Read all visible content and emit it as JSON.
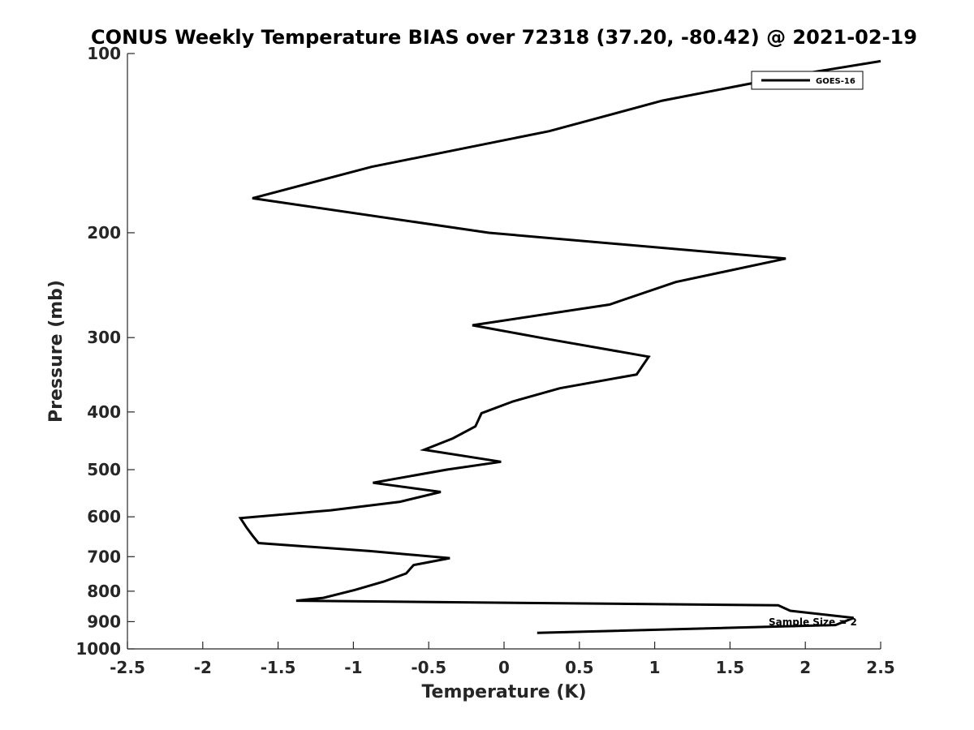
{
  "chart_data": {
    "type": "line",
    "title": "CONUS Weekly Temperature BIAS over 72318 (37.20, -80.42) @ 2021-02-19",
    "xlabel": "Temperature (K)",
    "ylabel": "Pressure (mb)",
    "xlim": [
      -2.5,
      2.5
    ],
    "ylim": [
      100,
      1000
    ],
    "y_scale": "log",
    "y_reversed": true,
    "grid": false,
    "legend_position": "top-right",
    "x_ticks": [
      "-2.5",
      "-2",
      "-1.5",
      "-1",
      "-0.5",
      "0",
      "0.5",
      "1",
      "1.5",
      "2",
      "2.5"
    ],
    "x_tick_values": [
      -2.5,
      -2,
      -1.5,
      -1,
      -0.5,
      0,
      0.5,
      1,
      1.5,
      2,
      2.5
    ],
    "y_ticks": [
      "100",
      "200",
      "300",
      "400",
      "500",
      "600",
      "700",
      "800",
      "900",
      "1000"
    ],
    "y_tick_values": [
      100,
      200,
      300,
      400,
      500,
      600,
      700,
      800,
      900,
      1000
    ],
    "annotation": "Sample Size = 2",
    "series": [
      {
        "name": "GOES-16",
        "color": "#000000",
        "x": [
          2.5,
          1.9,
          1.05,
          0.3,
          -0.88,
          -1.67,
          -0.1,
          1.87,
          1.14,
          0.7,
          -0.21,
          0.27,
          0.96,
          0.88,
          0.37,
          0.06,
          -0.15,
          -0.19,
          -0.34,
          -0.53,
          -0.02,
          -0.38,
          -0.87,
          -0.42,
          -0.69,
          -1.15,
          -1.75,
          -1.71,
          -1.67,
          -1.63,
          -0.89,
          -0.36,
          -0.6,
          -0.65,
          -0.8,
          -0.99,
          -1.2,
          -1.38,
          1.82,
          1.9,
          2.32,
          2.2,
          0.22
        ],
        "y": [
          103,
          109,
          120,
          135,
          155,
          175,
          200,
          221,
          242,
          264,
          286,
          301,
          323,
          346,
          365,
          384,
          402,
          423,
          443,
          463,
          485,
          500,
          526,
          545,
          566,
          585,
          603,
          625,
          645,
          664,
          685,
          704,
          723,
          747,
          771,
          796,
          821,
          830,
          845,
          863,
          887,
          912,
          940
        ]
      }
    ]
  }
}
